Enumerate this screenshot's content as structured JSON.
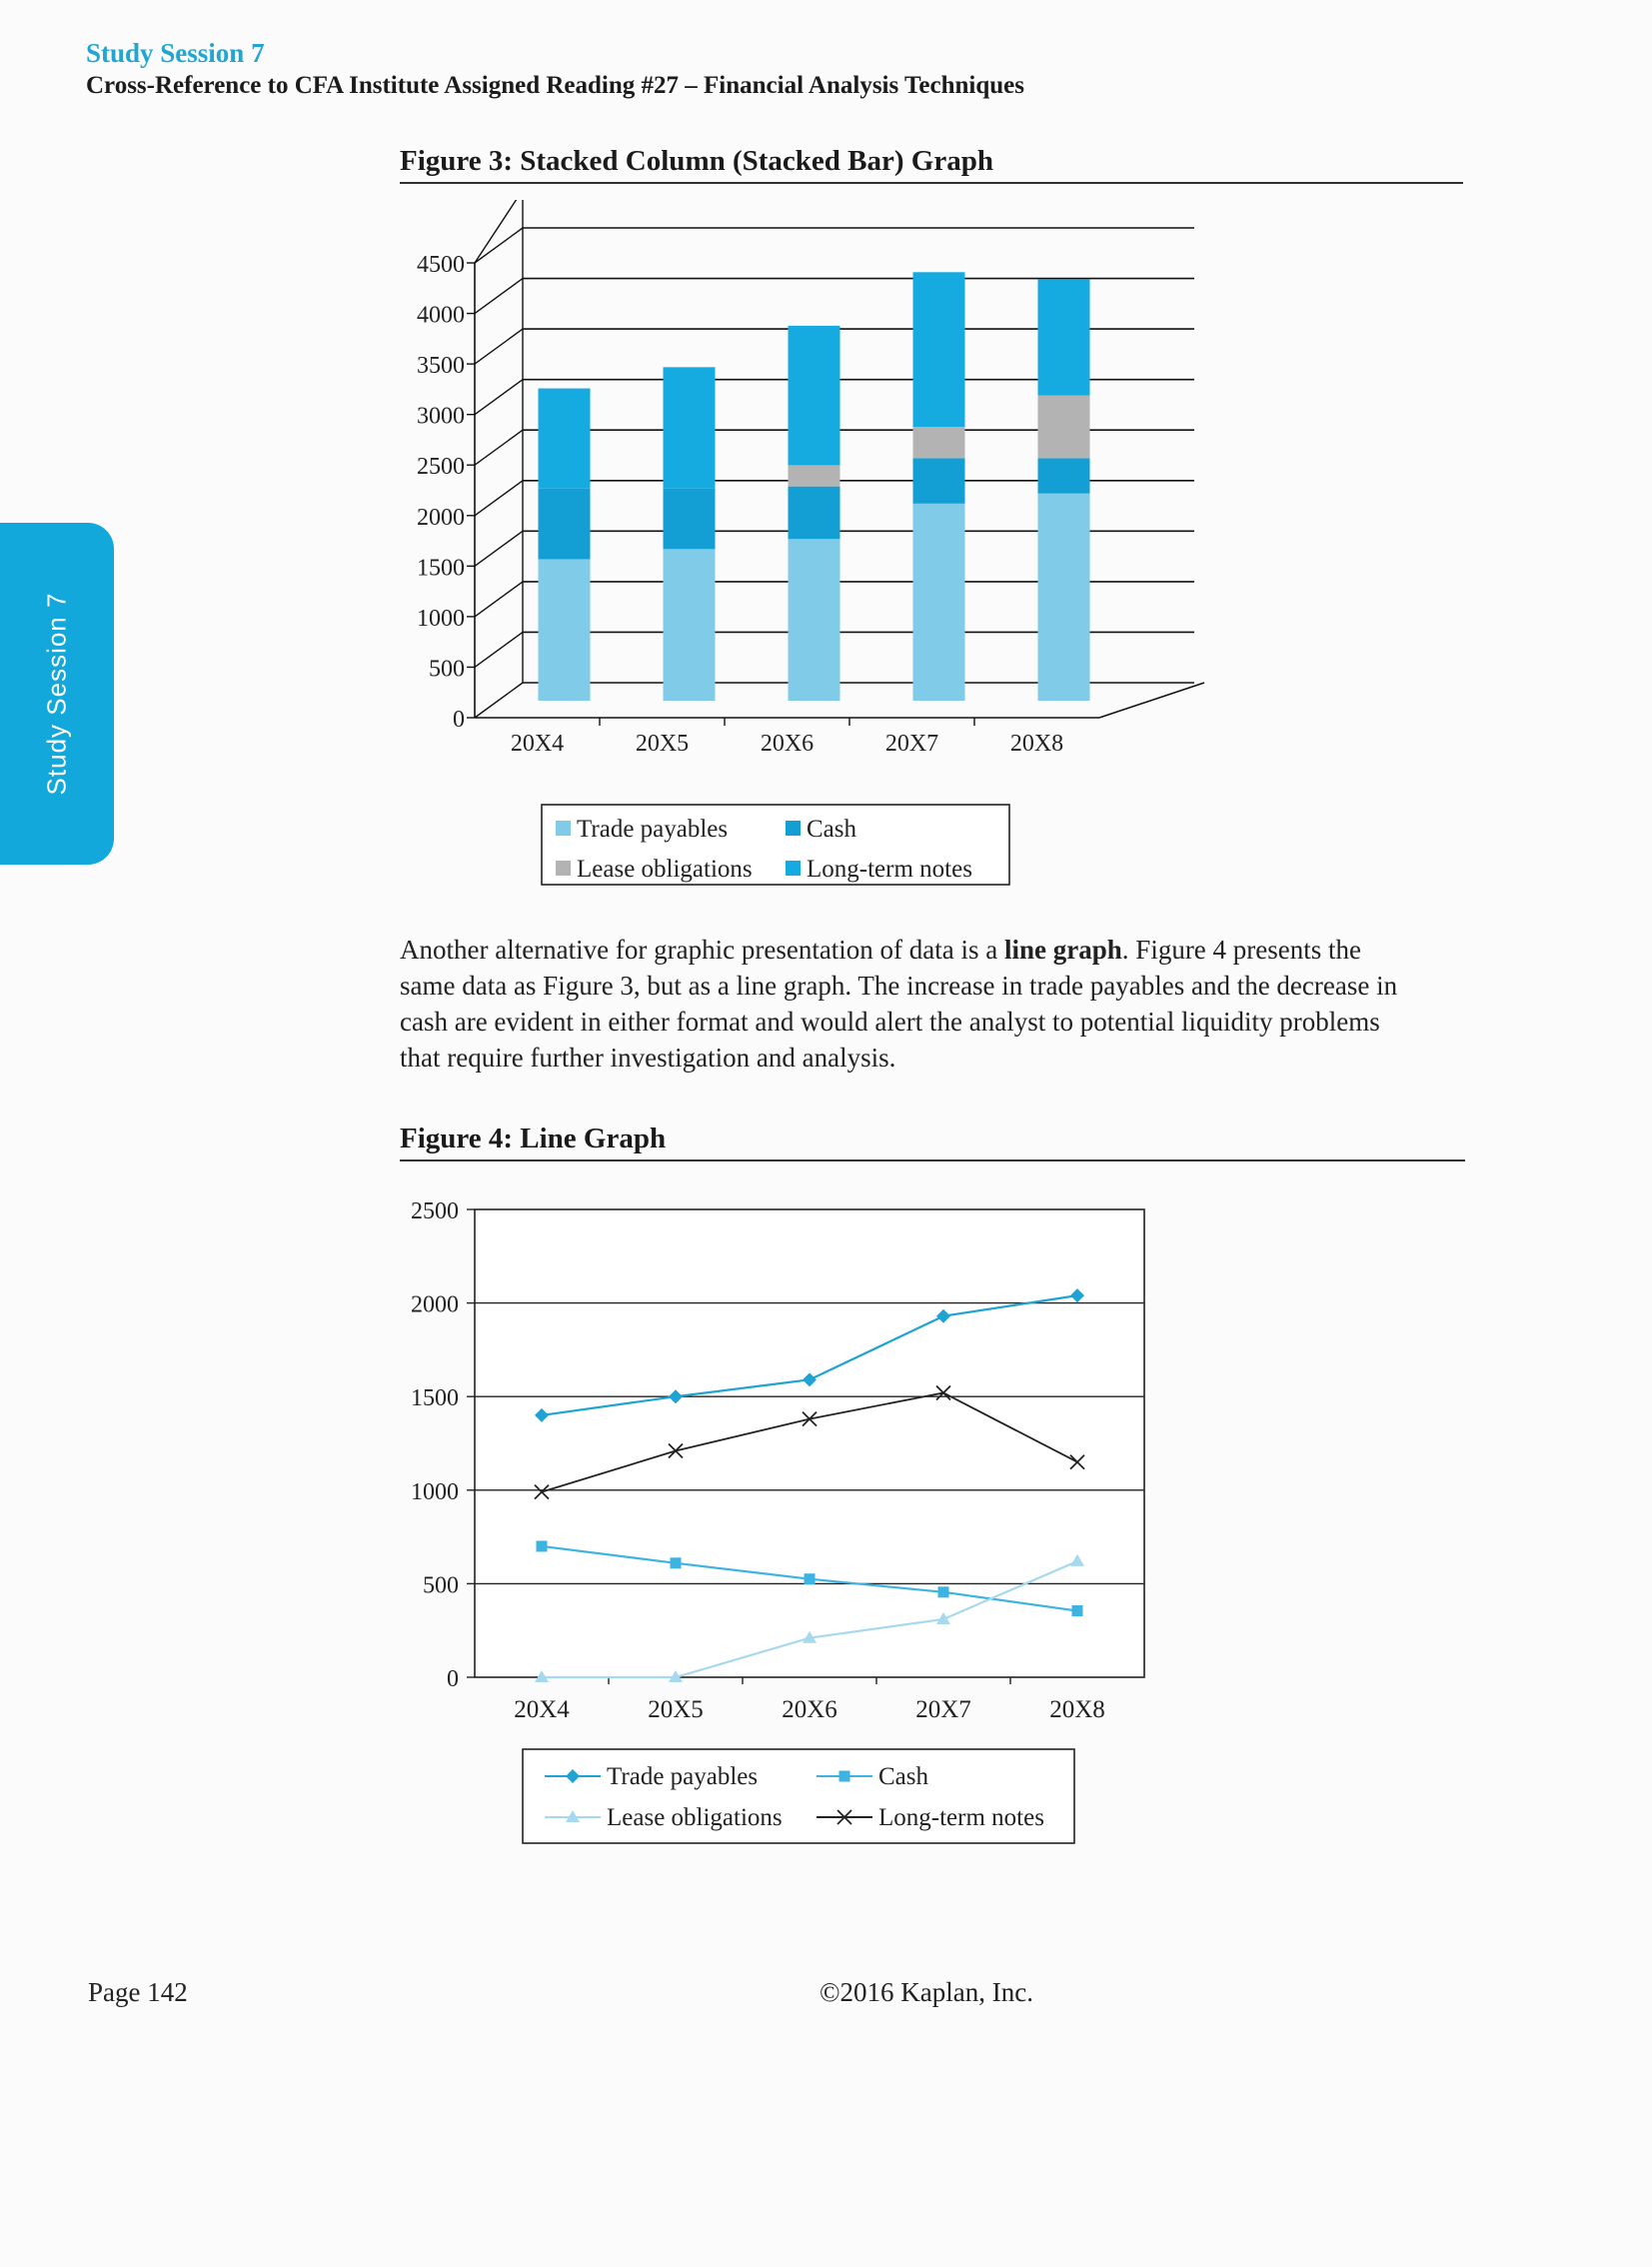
{
  "header": {
    "study_session": "Study Session 7",
    "cross_reference": "Cross-Reference to CFA Institute Assigned Reading #27 – Financial Analysis Techniques"
  },
  "side_tab": {
    "label": "Study Session 7",
    "color": "#12a8dc"
  },
  "colors": {
    "trade_payables": "#7fcbe8",
    "cash": "#139fd4",
    "lease_obligations": "#b3b3b3",
    "long_term_notes": "#15abe0",
    "line_trade": "#1fa2d4",
    "line_cash": "#3db3e2",
    "line_lease": "#a6d9ee",
    "line_notes": "#222222"
  },
  "figure3": {
    "title": "Figure 3: Stacked Column (Stacked Bar) Graph"
  },
  "figure4": {
    "title": "Figure 4: Line Graph"
  },
  "paragraph": {
    "before": "Another alternative for graphic presentation of data is a ",
    "bold": "line graph",
    "after": ". Figure 4 presents the same data as Figure 3, but as a line graph. The increase in trade payables and the decrease in cash are evident in either format and would alert the analyst to potential liquidity problems that require further investigation and analysis."
  },
  "footer": {
    "page": "Page 142",
    "copyright": "©2016 Kaplan, Inc."
  },
  "chart_data": [
    {
      "type": "bar",
      "stacked": true,
      "three_d": true,
      "categories": [
        "20X4",
        "20X5",
        "20X6",
        "20X7",
        "20X8"
      ],
      "ylim": [
        0,
        4500
      ],
      "yticks": [
        "0",
        "500",
        "1000",
        "1500",
        "2000",
        "2500",
        "3000",
        "3500",
        "4000",
        "4500"
      ],
      "grid": true,
      "legend_position": "bottom",
      "series": [
        {
          "name": "Trade payables",
          "values": [
            1400,
            1500,
            1600,
            1950,
            2050
          ]
        },
        {
          "name": "Cash",
          "values": [
            700,
            600,
            520,
            450,
            350
          ]
        },
        {
          "name": "Lease obligations",
          "values": [
            0,
            0,
            210,
            310,
            620
          ]
        },
        {
          "name": "Long-term notes",
          "values": [
            990,
            1200,
            1380,
            1530,
            1150
          ]
        }
      ]
    },
    {
      "type": "line",
      "categories": [
        "20X4",
        "20X5",
        "20X6",
        "20X7",
        "20X8"
      ],
      "ylim": [
        0,
        2500
      ],
      "yticks": [
        "0",
        "500",
        "1000",
        "1500",
        "2000",
        "2500"
      ],
      "grid": true,
      "legend_position": "bottom",
      "series": [
        {
          "name": "Trade payables",
          "marker": "diamond",
          "values": [
            1400,
            1500,
            1590,
            1930,
            2040
          ]
        },
        {
          "name": "Cash",
          "marker": "square",
          "values": [
            700,
            610,
            525,
            455,
            355
          ]
        },
        {
          "name": "Lease obligations",
          "marker": "triangle",
          "values": [
            0,
            0,
            210,
            310,
            620
          ]
        },
        {
          "name": "Long-term notes",
          "marker": "x",
          "values": [
            990,
            1210,
            1380,
            1520,
            1150
          ]
        }
      ]
    }
  ]
}
